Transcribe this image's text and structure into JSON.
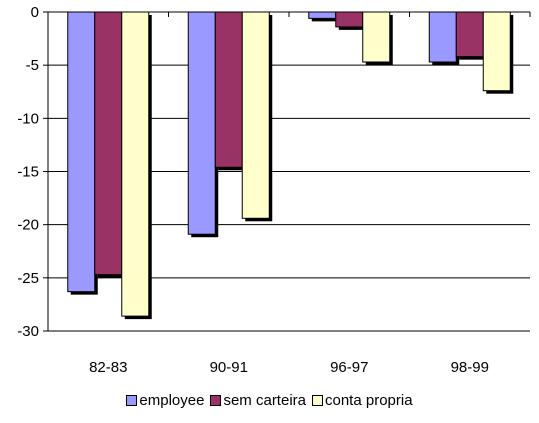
{
  "chart_data": {
    "type": "bar",
    "title": "",
    "xlabel": "",
    "ylabel": "",
    "categories": [
      "82-83",
      "90-91",
      "96-97",
      "98-99"
    ],
    "ylim": [
      -30,
      0
    ],
    "yticks": [
      0,
      -5,
      -10,
      -15,
      -20,
      -25,
      -30
    ],
    "series": [
      {
        "name": "employee",
        "color": "#9999ff",
        "values": [
          -26.3,
          -20.9,
          -0.6,
          -4.7
        ]
      },
      {
        "name": "sem carteira",
        "color": "#993366",
        "values": [
          -24.7,
          -14.6,
          -1.4,
          -4.2
        ]
      },
      {
        "name": "conta propria",
        "color": "#ffffcc",
        "values": [
          -28.6,
          -19.4,
          -4.7,
          -7.4
        ]
      }
    ],
    "grid": true,
    "legend_position": "bottom"
  }
}
